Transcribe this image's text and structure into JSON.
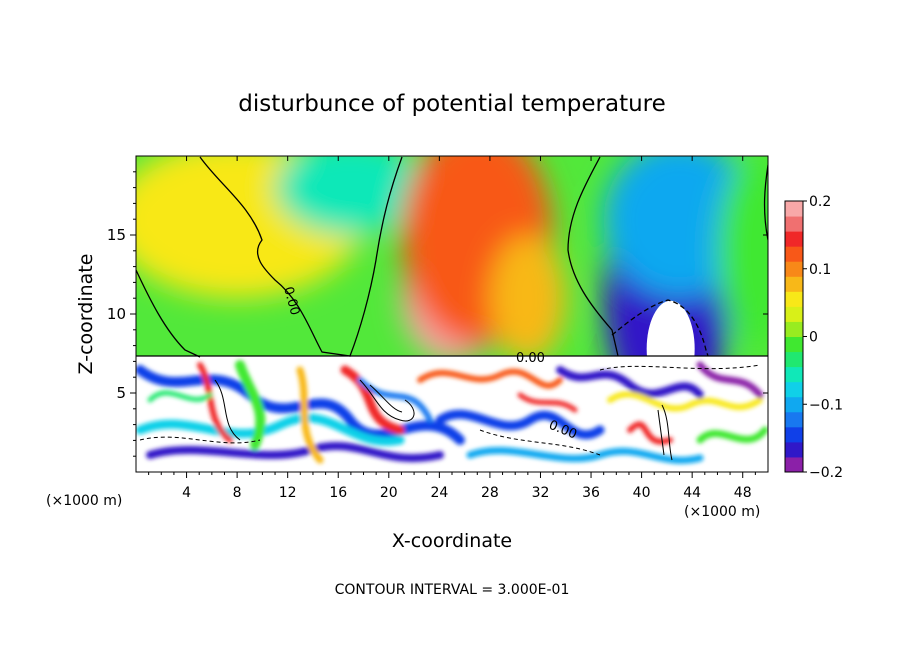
{
  "chart_data": {
    "type": "heatmap",
    "title": "disturbunce of potential temperature",
    "xlabel": "X-coordinate",
    "ylabel": "Z-coordinate",
    "x_unit_left": "(×1000 m)",
    "x_unit_right": "(×1000 m)",
    "xlim": [
      0,
      50
    ],
    "ylim": [
      0,
      20
    ],
    "x_ticks": [
      4,
      8,
      12,
      16,
      20,
      24,
      28,
      32,
      36,
      40,
      44,
      48
    ],
    "y_ticks": [
      5,
      10,
      15
    ],
    "colorbar": {
      "range": [
        -0.2,
        0.2
      ],
      "tick_values": [
        0.2,
        0.1,
        0,
        -0.1,
        -0.2
      ],
      "tick_labels": [
        "0.2",
        "0.1",
        "0",
        "−0.1",
        "−0.2"
      ],
      "colors": [
        "#8b20a8",
        "#3018c8",
        "#1040e8",
        "#1878f0",
        "#10a8f0",
        "#10d0e8",
        "#10e8b8",
        "#20e870",
        "#40e830",
        "#98ec20",
        "#d8f018",
        "#f8e818",
        "#f8b818",
        "#f88818",
        "#f85818",
        "#f02828",
        "#f07070",
        "#f8a8a8"
      ]
    },
    "contour_labels": [
      "0.00",
      "0.00",
      "0.00"
    ],
    "annotation": "CONTOUR INTERVAL = 3.000E-01",
    "upper_field_blobs": [
      {
        "x": 8,
        "z": 16,
        "rx": 10,
        "rz": 5,
        "v": 0.05
      },
      {
        "x": 17,
        "z": 18,
        "rx": 6,
        "rz": 3,
        "v": -0.06
      },
      {
        "x": 25,
        "z": 11,
        "rx": 4,
        "rz": 4,
        "v": 0.18
      },
      {
        "x": 27,
        "z": 15,
        "rx": 6,
        "rz": 7,
        "v": 0.12
      },
      {
        "x": 31,
        "z": 11,
        "rx": 3,
        "rz": 4,
        "v": 0.08
      },
      {
        "x": 42,
        "z": 11,
        "rx": 5,
        "rz": 8,
        "v": -0.17
      },
      {
        "x": 43,
        "z": 16,
        "rx": 6,
        "rz": 5,
        "v": -0.1
      },
      {
        "x": 49,
        "z": 14,
        "rx": 3,
        "rz": 6,
        "v": -0.02
      }
    ]
  }
}
